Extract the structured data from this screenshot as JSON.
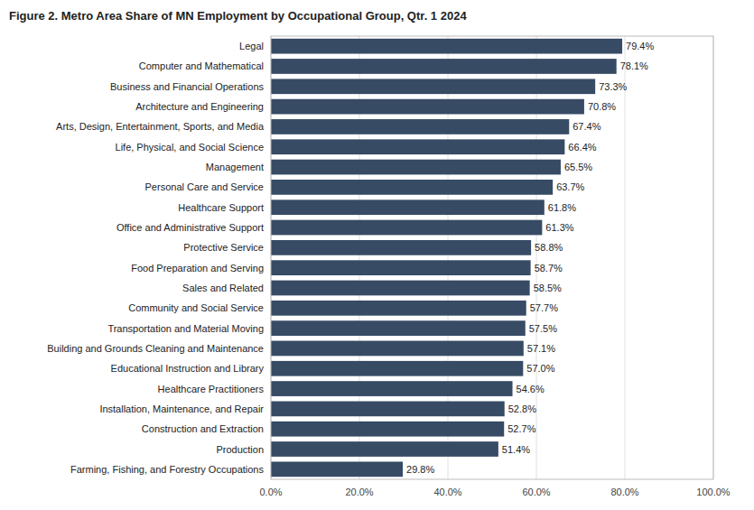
{
  "chart_data": {
    "type": "bar",
    "orientation": "horizontal",
    "title": "Figure 2. Metro Area Share of MN Employment by Occupational Group, Qtr. 1 2024",
    "categories": [
      "Legal",
      "Computer and Mathematical",
      "Business and Financial Operations",
      "Architecture and Engineering",
      "Arts, Design, Entertainment, Sports, and Media",
      "Life, Physical, and Social Science",
      "Management",
      "Personal Care and Service",
      "Healthcare Support",
      "Office and Administrative Support",
      "Protective Service",
      "Food Preparation and Serving",
      "Sales and Related",
      "Community and Social Service",
      "Transportation and Material Moving",
      "Building and Grounds Cleaning and Maintenance",
      "Educational Instruction and Library",
      "Healthcare Practitioners",
      "Installation, Maintenance, and Repair",
      "Construction and Extraction",
      "Production",
      "Farming, Fishing, and Forestry Occupations"
    ],
    "values": [
      79.4,
      78.1,
      73.3,
      70.8,
      67.4,
      66.4,
      65.5,
      63.7,
      61.8,
      61.3,
      58.8,
      58.7,
      58.5,
      57.7,
      57.5,
      57.1,
      57.0,
      54.6,
      52.8,
      52.7,
      51.4,
      29.8
    ],
    "value_labels": [
      "79.4%",
      "78.1%",
      "73.3%",
      "70.8%",
      "67.4%",
      "66.4%",
      "65.5%",
      "63.7%",
      "61.8%",
      "61.3%",
      "58.8%",
      "58.7%",
      "58.5%",
      "57.7%",
      "57.5%",
      "57.1%",
      "57.0%",
      "54.6%",
      "52.8%",
      "52.7%",
      "51.4%",
      "29.8%"
    ],
    "data_labels": true,
    "color": "#374b65",
    "xlim": [
      0,
      100
    ],
    "xticks": [
      {
        "value": 0,
        "label": "0.0%"
      },
      {
        "value": 20,
        "label": "20.0%"
      },
      {
        "value": 40,
        "label": "40.0%"
      },
      {
        "value": 60,
        "label": "60.0%"
      },
      {
        "value": 80,
        "label": "80.0%"
      },
      {
        "value": 100,
        "label": "100.0%"
      }
    ],
    "grid": true
  }
}
